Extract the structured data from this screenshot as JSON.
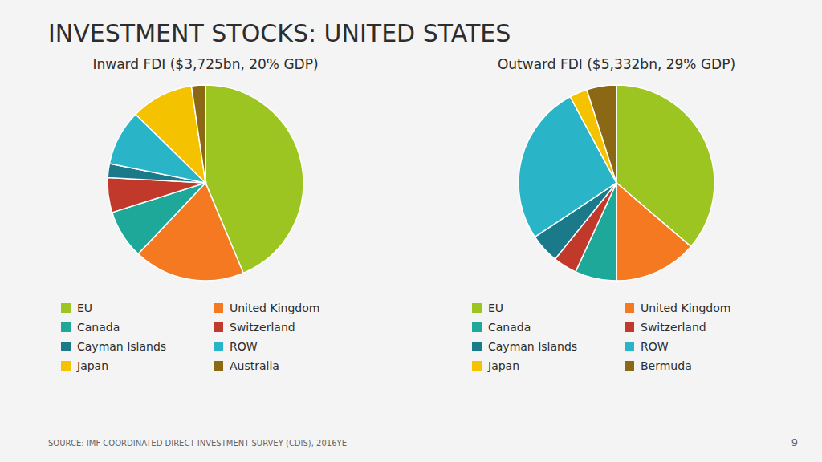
{
  "title": "INVESTMENT STOCKS: UNITED STATES",
  "annotations": [
    "SOURCE: IMF COORDINATED DIRECT INVESTMENT SURVEY (CDIS), 2016YE",
    "9"
  ],
  "chart_data": [
    {
      "type": "pie",
      "title": "Inward FDI ($3,725bn, 20% GDP)",
      "categories": [
        "EU",
        "United Kingdom",
        "Canada",
        "Switzerland",
        "Cayman Islands",
        "ROW",
        "Japan",
        "Australia"
      ],
      "values": [
        38,
        16,
        7,
        5,
        2,
        8,
        9,
        2
      ],
      "colors": [
        "#9dc521",
        "#f47920",
        "#1da89a",
        "#c0392b",
        "#1a7a8a",
        "#29b4c8",
        "#f5c200",
        "#8B6914"
      ],
      "legend": "bottom"
    },
    {
      "type": "pie",
      "title": "Outward FDI ($5,332bn, 29% GDP)",
      "categories": [
        "EU",
        "United Kingdom",
        "Canada",
        "Switzerland",
        "Cayman Islands",
        "ROW",
        "Japan",
        "Bermuda"
      ],
      "values": [
        37,
        14,
        7,
        4,
        5,
        27,
        3,
        5
      ],
      "colors": [
        "#9dc521",
        "#f47920",
        "#1da89a",
        "#c0392b",
        "#1a7a8a",
        "#29b4c8",
        "#f5c200",
        "#8B6914"
      ],
      "legend": "bottom"
    }
  ]
}
